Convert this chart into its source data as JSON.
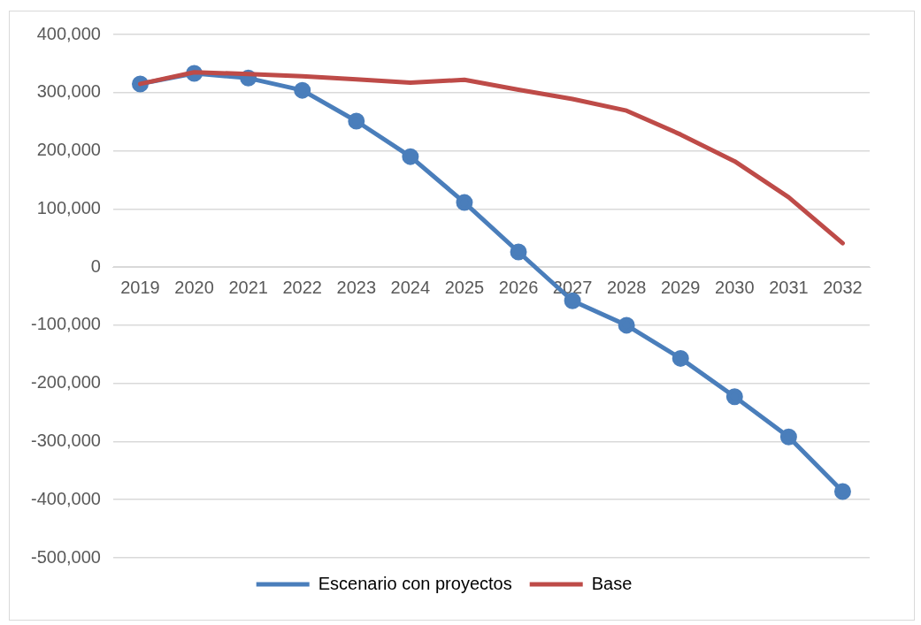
{
  "chart_data": {
    "type": "line",
    "categories": [
      "2019",
      "2020",
      "2021",
      "2022",
      "2023",
      "2024",
      "2025",
      "2026",
      "2027",
      "2028",
      "2029",
      "2030",
      "2031",
      "2032"
    ],
    "series": [
      {
        "name": "Escenario con proyectos",
        "color": "#4a7ebb",
        "marker": "circle",
        "values": [
          315000,
          333000,
          325000,
          304000,
          251000,
          190000,
          111000,
          26000,
          -58000,
          -100000,
          -157000,
          -223000,
          -292000,
          -386000
        ]
      },
      {
        "name": "Base",
        "color": "#be4b48",
        "marker": "none",
        "values": [
          315000,
          335000,
          332000,
          328000,
          323000,
          317000,
          322000,
          305000,
          289000,
          269000,
          228000,
          182000,
          120000,
          41000
        ]
      }
    ],
    "ylim": [
      -500000,
      400000
    ],
    "yticks": [
      {
        "value": -500000,
        "label": "-500,000"
      },
      {
        "value": -400000,
        "label": "-400,000"
      },
      {
        "value": -300000,
        "label": "-300,000"
      },
      {
        "value": -200000,
        "label": "-200,000"
      },
      {
        "value": -100000,
        "label": "-100,000"
      },
      {
        "value": 0,
        "label": "0"
      },
      {
        "value": 100000,
        "label": "100,000"
      },
      {
        "value": 200000,
        "label": "200,000"
      },
      {
        "value": 300000,
        "label": "300,000"
      },
      {
        "value": 400000,
        "label": "400,000"
      }
    ],
    "grid": "y",
    "legend": "bottom",
    "line_style": "solid"
  }
}
